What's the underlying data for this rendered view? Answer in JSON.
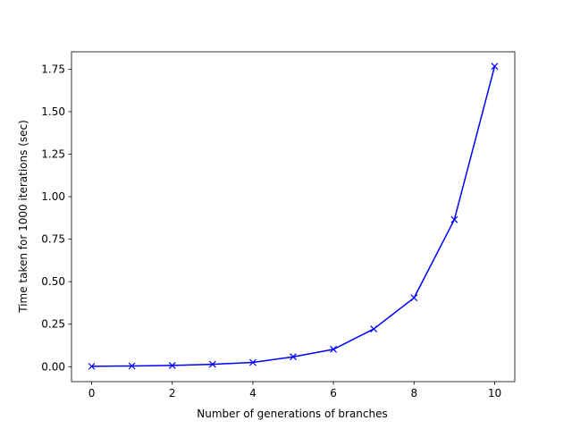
{
  "chart_data": {
    "type": "line",
    "title": "",
    "xlabel": "Number of generations of branches",
    "ylabel": "Time taken for 1000 iterations (sec)",
    "xlim": [
      -0.5,
      10.5
    ],
    "ylim": [
      -0.088,
      1.852
    ],
    "xticks": [
      0,
      2,
      4,
      6,
      8,
      10
    ],
    "xtick_labels": [
      "0",
      "2",
      "4",
      "6",
      "8",
      "10"
    ],
    "yticks": [
      0.0,
      0.25,
      0.5,
      0.75,
      1.0,
      1.25,
      1.5,
      1.75
    ],
    "ytick_labels": [
      "0.00",
      "0.25",
      "0.50",
      "0.75",
      "1.00",
      "1.25",
      "1.50",
      "1.75"
    ],
    "grid": false,
    "series": [
      {
        "color": "#0000ff",
        "marker": "x",
        "x": [
          0,
          1,
          2,
          3,
          4,
          5,
          6,
          7,
          8,
          9,
          10
        ],
        "y": [
          0.002,
          0.004,
          0.007,
          0.014,
          0.025,
          0.058,
          0.102,
          0.222,
          0.405,
          0.865,
          1.767
        ]
      }
    ]
  }
}
